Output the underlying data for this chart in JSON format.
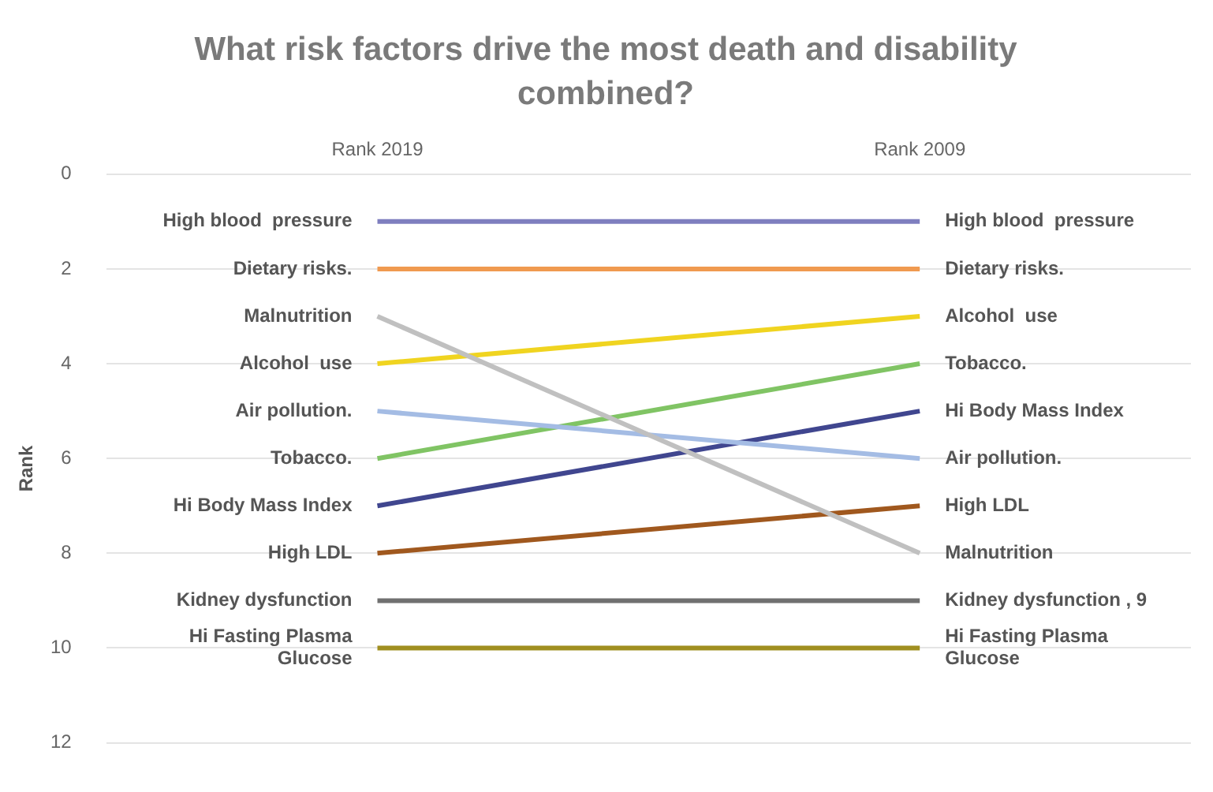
{
  "chart_data": {
    "type": "line",
    "title": "What risk factors drive the most death and disability combined?",
    "ylabel": "Rank",
    "categories": [
      "Rank 2019",
      "Rank 2009"
    ],
    "ylim": [
      12,
      0
    ],
    "yticks": [
      0,
      2,
      4,
      6,
      8,
      10,
      12
    ],
    "grid": "y",
    "legend": false,
    "marker": "none",
    "line_style": "solid",
    "series": [
      {
        "name": "High blood  pressure",
        "color": "#7f7fbf",
        "values": [
          1,
          1
        ]
      },
      {
        "name": "Dietary risks.",
        "color": "#f09a50",
        "values": [
          2,
          2
        ]
      },
      {
        "name": "Malnutrition",
        "color": "#c0c0c0",
        "values": [
          3,
          8
        ]
      },
      {
        "name": "Alcohol  use",
        "color": "#f0d420",
        "values": [
          4,
          3
        ]
      },
      {
        "name": "Air pollution.",
        "color": "#a4bce4",
        "values": [
          5,
          6
        ]
      },
      {
        "name": "Tobacco.",
        "color": "#80c464",
        "values": [
          6,
          4
        ]
      },
      {
        "name": "Hi Body Mass Index",
        "color": "#40468f",
        "values": [
          7,
          5
        ]
      },
      {
        "name": "High LDL",
        "color": "#a0581e",
        "values": [
          8,
          7
        ]
      },
      {
        "name": "Kidney dysfunction",
        "color": "#707070",
        "values": [
          9,
          9
        ],
        "value_labels": [
          null,
          "Kidney dysfunction , 9"
        ]
      },
      {
        "name": "Hi Fasting Plasma Glucose",
        "color": "#a08f20",
        "values": [
          10,
          10
        ]
      }
    ]
  }
}
